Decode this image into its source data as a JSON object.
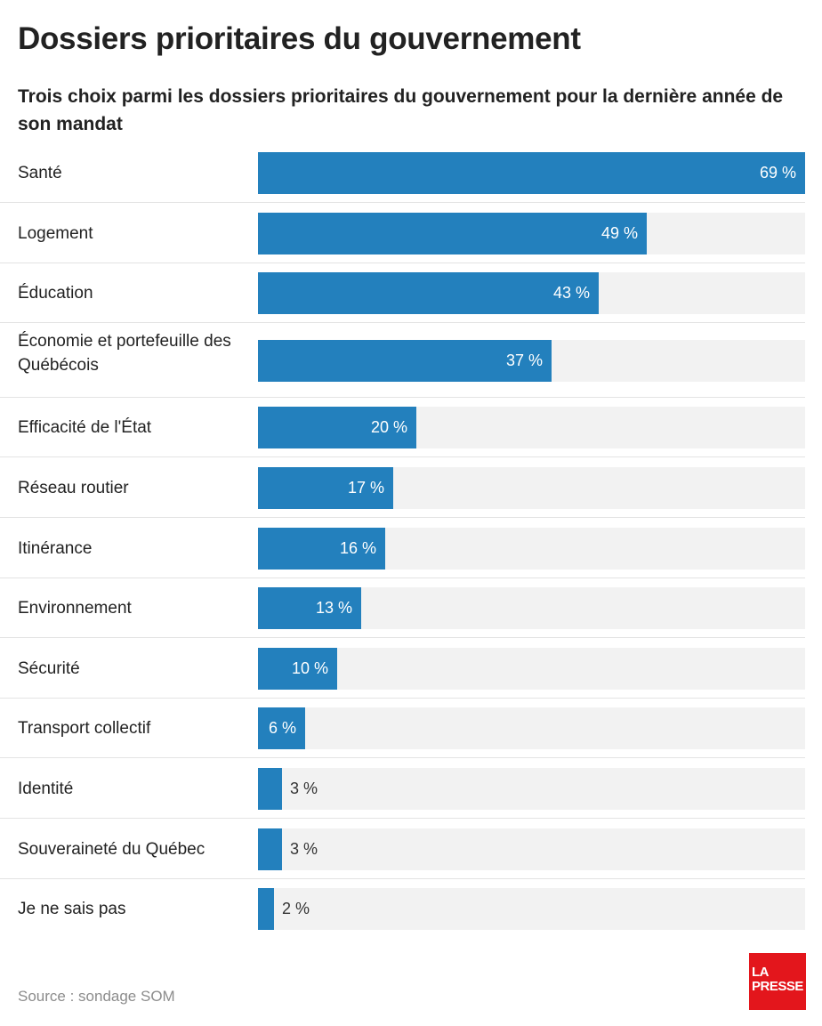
{
  "chart_data": {
    "type": "bar",
    "orientation": "horizontal",
    "title": "Dossiers prioritaires du gouvernement",
    "subtitle": "Trois choix parmi les dossiers prioritaires du gouvernement pour la dernière année de son mandat",
    "xmax": 69,
    "unit_suffix": " %",
    "categories": [
      "Santé",
      "Logement",
      "Éducation",
      "Économie et portefeuille des Québécois",
      "Efficacité de l'État",
      "Réseau routier",
      "Itinérance",
      "Environnement",
      "Sécurité",
      "Transport collectif",
      "Identité",
      "Souveraineté du Québec",
      "Je ne sais pas"
    ],
    "values": [
      69,
      49,
      43,
      37,
      20,
      17,
      16,
      13,
      10,
      6,
      3,
      3,
      2
    ],
    "value_labels": [
      "69 %",
      "49 %",
      "43 %",
      "37 %",
      "20 %",
      "17 %",
      "16 %",
      "13 %",
      "10 %",
      "6 %",
      "3 %",
      "3 %",
      "2 %"
    ],
    "bar_color": "#2380bd",
    "track_color": "#f2f2f2"
  },
  "footer": {
    "source": "Source : sondage SOM"
  },
  "logo": {
    "line1": "LA",
    "line2": "PRESSE",
    "color": "#e3161c"
  }
}
